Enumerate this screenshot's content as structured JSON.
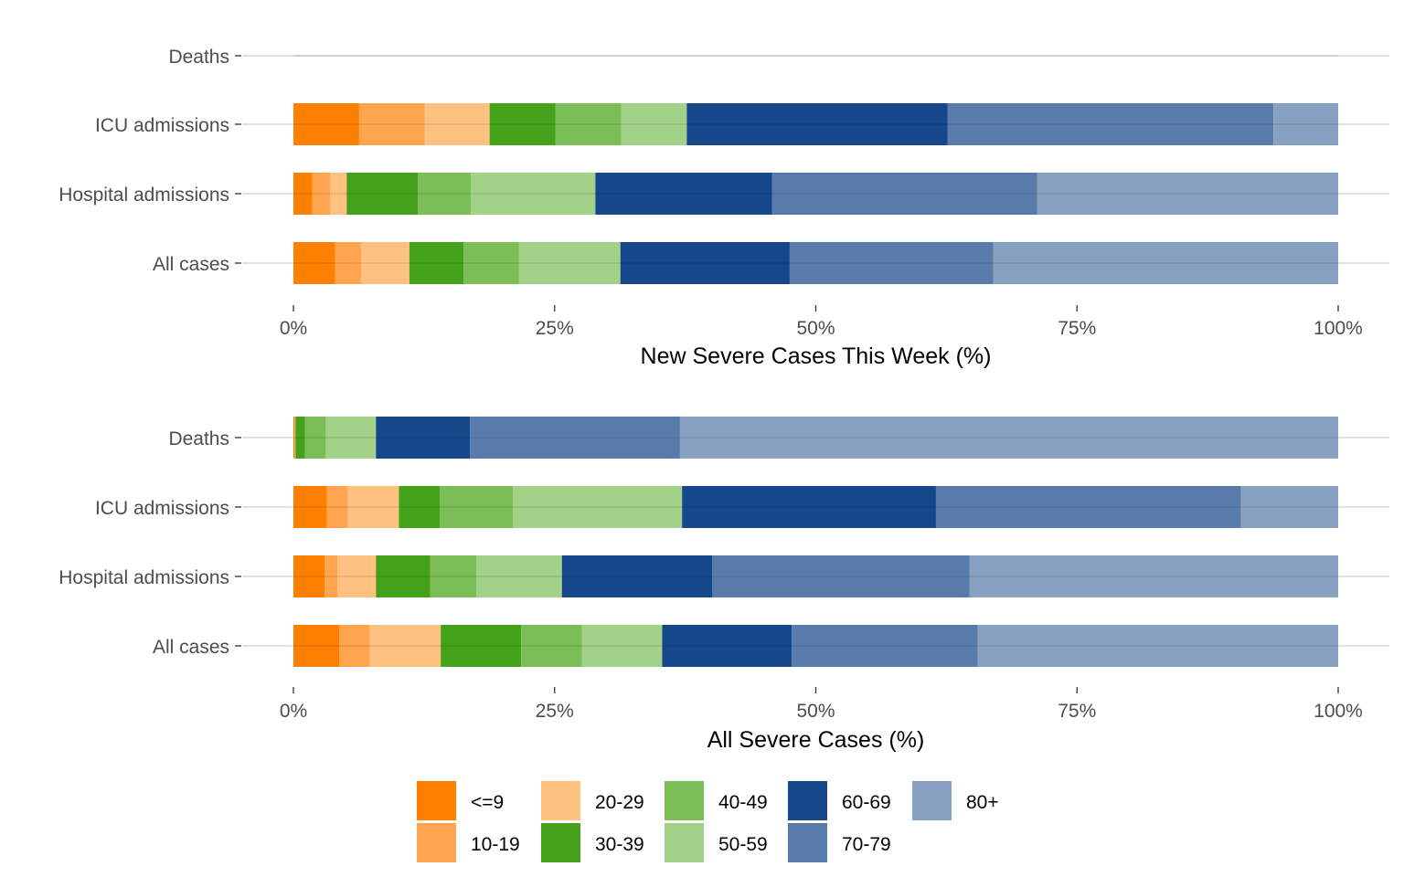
{
  "chart_data": [
    {
      "type": "bar",
      "orientation": "horizontal",
      "stacked": "percent",
      "xlabel": "New Severe Cases This Week (%)",
      "xlim": [
        0,
        100
      ],
      "xticks": [
        "0%",
        "25%",
        "50%",
        "75%",
        "100%"
      ],
      "categories": [
        "Deaths",
        "ICU admissions",
        "Hospital admissions",
        "All cases"
      ],
      "series": [
        {
          "name": "<=9",
          "values": [
            0,
            6.7,
            1.8,
            4.0
          ]
        },
        {
          "name": "10-19",
          "values": [
            0,
            6.7,
            1.7,
            2.5
          ]
        },
        {
          "name": "20-29",
          "values": [
            0,
            6.6,
            1.6,
            4.6
          ]
        },
        {
          "name": "30-39",
          "values": [
            0,
            6.7,
            6.8,
            5.2
          ]
        },
        {
          "name": "40-49",
          "values": [
            0,
            6.7,
            5.1,
            5.3
          ]
        },
        {
          "name": "50-59",
          "values": [
            0,
            6.7,
            11.9,
            9.7
          ]
        },
        {
          "name": "60-69",
          "values": [
            0,
            26.6,
            16.9,
            16.2
          ]
        },
        {
          "name": "70-79",
          "values": [
            0,
            33.2,
            25.4,
            19.5
          ]
        },
        {
          "name": "80+",
          "values": [
            0,
            6.6,
            28.8,
            33.0
          ]
        }
      ]
    },
    {
      "type": "bar",
      "orientation": "horizontal",
      "stacked": "percent",
      "xlabel": "All Severe Cases (%)",
      "xlim": [
        0,
        100
      ],
      "xticks": [
        "0%",
        "25%",
        "50%",
        "75%",
        "100%"
      ],
      "categories": [
        "Deaths",
        "ICU admissions",
        "Hospital admissions",
        "All cases"
      ],
      "series": [
        {
          "name": "<=9",
          "values": [
            0.1,
            3.2,
            3.0,
            4.4
          ]
        },
        {
          "name": "10-19",
          "values": [
            0.1,
            2.0,
            1.2,
            2.9
          ]
        },
        {
          "name": "20-29",
          "values": [
            0.0,
            4.9,
            3.7,
            6.8
          ]
        },
        {
          "name": "30-39",
          "values": [
            0.9,
            3.9,
            5.2,
            7.7
          ]
        },
        {
          "name": "40-49",
          "values": [
            2.0,
            7.0,
            4.4,
            5.8
          ]
        },
        {
          "name": "50-59",
          "values": [
            4.8,
            16.2,
            8.2,
            7.7
          ]
        },
        {
          "name": "60-69",
          "values": [
            9.0,
            24.3,
            14.4,
            12.4
          ]
        },
        {
          "name": "70-79",
          "values": [
            20.1,
            29.2,
            24.6,
            17.8
          ]
        },
        {
          "name": "80+",
          "values": [
            63.0,
            9.3,
            35.3,
            34.5
          ]
        }
      ]
    }
  ],
  "legend": {
    "position": "bottom",
    "items": [
      {
        "label": "<=9",
        "color": "#ff7f00"
      },
      {
        "label": "10-19",
        "color": "#ffa54f"
      },
      {
        "label": "20-29",
        "color": "#ffc17f"
      },
      {
        "label": "30-39",
        "color": "#44a21a"
      },
      {
        "label": "40-49",
        "color": "#7bbd57"
      },
      {
        "label": "50-59",
        "color": "#a1d287"
      },
      {
        "label": "60-69",
        "color": "#16478a"
      },
      {
        "label": "70-79",
        "color": "#597bac"
      },
      {
        "label": "80+",
        "color": "#88a1c2"
      }
    ]
  },
  "colors": {
    "gridline": "#d0d0d0",
    "tick_text": "#4d4d4d"
  }
}
